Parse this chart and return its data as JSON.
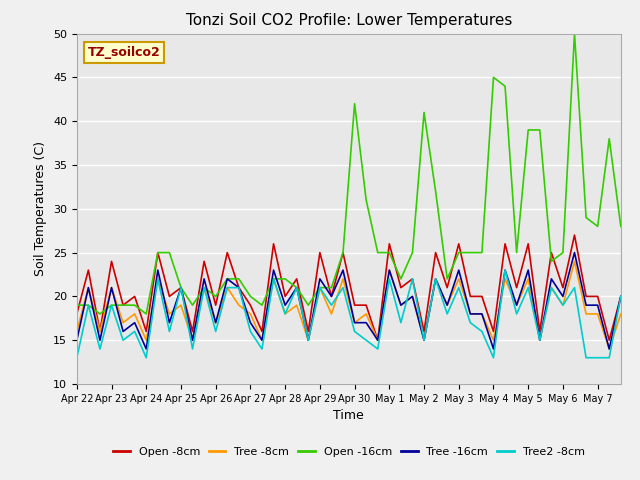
{
  "title": "Tonzi Soil CO2 Profile: Lower Temperatures",
  "xlabel": "Time",
  "ylabel": "Soil Temperatures (C)",
  "ylim": [
    10,
    50
  ],
  "fig_bg_color": "#f0f0f0",
  "plot_bg_color": "#e8e8e8",
  "watermark_text": "TZ_soilco2",
  "series": {
    "open_8cm": {
      "label": "Open -8cm",
      "color": "#cc0000",
      "lw": 1.2
    },
    "tree_8cm": {
      "label": "Tree -8cm",
      "color": "#ff9900",
      "lw": 1.2
    },
    "open_16cm": {
      "label": "Open -16cm",
      "color": "#33cc00",
      "lw": 1.2
    },
    "tree_16cm": {
      "label": "Tree -16cm",
      "color": "#000099",
      "lw": 1.2
    },
    "tree2_8cm": {
      "label": "Tree2 -8cm",
      "color": "#00cccc",
      "lw": 1.2
    }
  },
  "xtick_labels": [
    "Apr 22",
    "Apr 23",
    "Apr 24",
    "Apr 25",
    "Apr 26",
    "Apr 27",
    "Apr 28",
    "Apr 29",
    "Apr 30",
    "May 1",
    "May 2",
    "May 3",
    "May 4",
    "May 5",
    "May 6",
    "May 7"
  ],
  "ytick_labels": [
    10,
    15,
    20,
    25,
    30,
    35,
    40,
    45,
    50
  ],
  "open_8cm_y": [
    18,
    23,
    16,
    24,
    19,
    20,
    16,
    25,
    20,
    21,
    16,
    24,
    19,
    25,
    21,
    19,
    16,
    26,
    20,
    22,
    16,
    25,
    20,
    25,
    19,
    19,
    15,
    26,
    21,
    22,
    16,
    25,
    21,
    26,
    20,
    20,
    16,
    26,
    21,
    26,
    16,
    25,
    21,
    27,
    20,
    20,
    15,
    20
  ],
  "tree_8cm_y": [
    16,
    21,
    16,
    21,
    17,
    18,
    15,
    22,
    18,
    19,
    15,
    21,
    17,
    21,
    19,
    18,
    15,
    22,
    18,
    19,
    15,
    21,
    18,
    22,
    17,
    18,
    15,
    23,
    19,
    20,
    15,
    22,
    19,
    22,
    18,
    18,
    15,
    22,
    19,
    22,
    15,
    21,
    19,
    24,
    18,
    18,
    14,
    18
  ],
  "open_16cm_y": [
    19,
    19,
    18,
    19,
    19,
    19,
    18,
    25,
    25,
    21,
    19,
    21,
    20,
    22,
    22,
    20,
    19,
    22,
    22,
    21,
    19,
    21,
    21,
    25,
    42,
    31,
    25,
    25,
    22,
    25,
    41,
    32,
    22,
    25,
    25,
    25,
    45,
    44,
    25,
    39,
    39,
    24,
    25,
    50,
    29,
    28,
    38,
    28
  ],
  "tree_16cm_y": [
    15,
    21,
    15,
    21,
    16,
    17,
    14,
    23,
    17,
    21,
    15,
    22,
    17,
    22,
    21,
    17,
    15,
    23,
    19,
    21,
    15,
    22,
    20,
    23,
    17,
    17,
    15,
    23,
    19,
    20,
    15,
    22,
    19,
    23,
    18,
    18,
    14,
    23,
    19,
    23,
    15,
    22,
    20,
    25,
    19,
    19,
    14,
    20
  ],
  "tree2_8cm_y": [
    13,
    19,
    14,
    19,
    15,
    16,
    13,
    22,
    16,
    21,
    14,
    21,
    16,
    21,
    21,
    16,
    14,
    22,
    18,
    21,
    15,
    21,
    19,
    21,
    16,
    15,
    14,
    22,
    17,
    22,
    15,
    22,
    18,
    21,
    17,
    16,
    13,
    23,
    18,
    21,
    15,
    21,
    19,
    21,
    13,
    13,
    13,
    20
  ],
  "n_days": 16,
  "pts_per_day": 3
}
